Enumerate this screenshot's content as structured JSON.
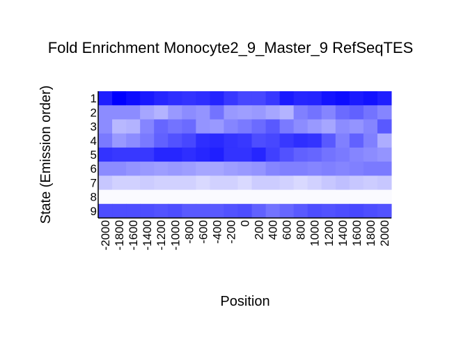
{
  "chart_data": {
    "type": "heatmap",
    "title": "Fold Enrichment Monocyte2_9_Master_9 RefSeqTES",
    "xlabel": "Position",
    "ylabel": "State (Emission order)",
    "x_ticks": [
      "-2000",
      "-1800",
      "-1600",
      "-1400",
      "-1200",
      "-1000",
      "-800",
      "-600",
      "-400",
      "-200",
      "0",
      "200",
      "400",
      "600",
      "800",
      "1000",
      "1200",
      "1400",
      "1600",
      "1800",
      "2000"
    ],
    "y_ticks": [
      "1",
      "2",
      "3",
      "4",
      "5",
      "6",
      "7",
      "8",
      "9"
    ],
    "color_low": "#ffffff",
    "color_high": "#0000ff",
    "values": [
      [
        0.88,
        1.0,
        0.95,
        0.9,
        0.85,
        0.82,
        0.8,
        0.82,
        0.86,
        0.78,
        0.72,
        0.72,
        0.78,
        0.9,
        0.85,
        0.86,
        0.92,
        0.95,
        0.9,
        0.93,
        0.88
      ],
      [
        0.45,
        0.45,
        0.45,
        0.35,
        0.3,
        0.4,
        0.45,
        0.42,
        0.55,
        0.4,
        0.38,
        0.4,
        0.35,
        0.3,
        0.5,
        0.55,
        0.48,
        0.58,
        0.62,
        0.55,
        0.48
      ],
      [
        0.45,
        0.28,
        0.3,
        0.48,
        0.6,
        0.55,
        0.58,
        0.42,
        0.4,
        0.48,
        0.52,
        0.58,
        0.65,
        0.52,
        0.45,
        0.4,
        0.35,
        0.45,
        0.42,
        0.48,
        0.65
      ],
      [
        0.52,
        0.4,
        0.45,
        0.52,
        0.62,
        0.68,
        0.72,
        0.82,
        0.84,
        0.8,
        0.78,
        0.7,
        0.72,
        0.78,
        0.82,
        0.8,
        0.65,
        0.5,
        0.62,
        0.5,
        0.32
      ],
      [
        0.8,
        0.78,
        0.78,
        0.78,
        0.85,
        0.85,
        0.82,
        0.85,
        0.88,
        0.8,
        0.8,
        0.85,
        0.75,
        0.68,
        0.62,
        0.6,
        0.55,
        0.52,
        0.48,
        0.45,
        0.42
      ],
      [
        0.45,
        0.45,
        0.42,
        0.4,
        0.38,
        0.4,
        0.38,
        0.35,
        0.35,
        0.38,
        0.4,
        0.42,
        0.48,
        0.5,
        0.5,
        0.48,
        0.5,
        0.48,
        0.5,
        0.52,
        0.52
      ],
      [
        0.22,
        0.18,
        0.18,
        0.2,
        0.18,
        0.18,
        0.18,
        0.15,
        0.18,
        0.18,
        0.15,
        0.2,
        0.2,
        0.18,
        0.15,
        0.18,
        0.22,
        0.25,
        0.22,
        0.2,
        0.22
      ],
      [
        0.02,
        0.02,
        0.02,
        0.02,
        0.02,
        0.02,
        0.02,
        0.02,
        0.02,
        0.02,
        0.02,
        0.02,
        0.02,
        0.02,
        0.02,
        0.02,
        0.02,
        0.02,
        0.02,
        0.02,
        0.02
      ],
      [
        0.7,
        0.7,
        0.7,
        0.7,
        0.68,
        0.7,
        0.65,
        0.65,
        0.65,
        0.68,
        0.7,
        0.62,
        0.55,
        0.6,
        0.65,
        0.7,
        0.68,
        0.7,
        0.72,
        0.7,
        0.68
      ]
    ],
    "grid": false,
    "legend": "none"
  }
}
